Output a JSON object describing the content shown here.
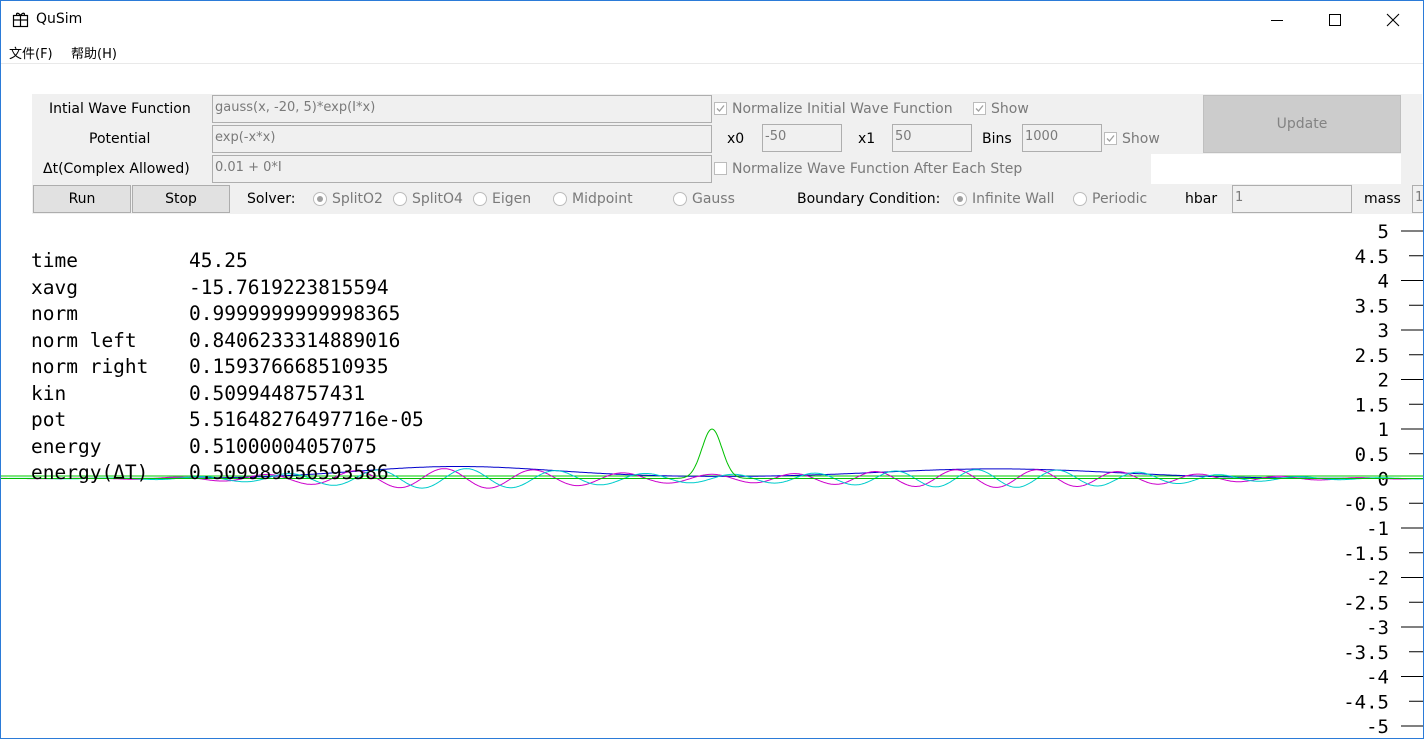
{
  "window": {
    "title": "QuSim"
  },
  "menu": [
    {
      "label": "文件(F)"
    },
    {
      "label": "帮助(H)"
    }
  ],
  "form": {
    "init_wave_label": "Intial Wave Function",
    "init_wave_value": "gauss(x, -20, 5)*exp(I*x)",
    "normalize_init_label": "Normalize Initial Wave Function",
    "show_label": "Show",
    "potential_label": "Potential",
    "potential_value": "exp(-x*x)",
    "x0_label": "x0",
    "x0_value": "-50",
    "x1_label": "x1",
    "x1_value": "50",
    "bins_label": "Bins",
    "bins_value": "1000",
    "show2_label": "Show",
    "dt_label": "Δt(Complex Allowed)",
    "dt_value": "0.01 + 0*I",
    "normalize_each_label": "Normalize Wave Function After Each Step",
    "update_label": "Update",
    "run_label": "Run",
    "stop_label": "Stop",
    "solver_label": "Solver:",
    "solvers": [
      "SplitO2",
      "SplitO4",
      "Eigen",
      "Midpoint",
      "Gauss"
    ],
    "selected_solver": "SplitO2",
    "boundary_label": "Boundary Condition:",
    "boundaries": [
      "Infinite Wall",
      "Periodic"
    ],
    "selected_boundary": "Infinite Wall",
    "hbar_label": "hbar",
    "hbar_value": "1",
    "mass_label": "mass",
    "mass_value": "1"
  },
  "stats": [
    {
      "name": "time",
      "value": "45.25"
    },
    {
      "name": "xavg",
      "value": "-15.7619223815594"
    },
    {
      "name": "norm",
      "value": "0.9999999999998365"
    },
    {
      "name": "norm left",
      "value": "0.8406233314889016"
    },
    {
      "name": "norm right",
      "value": "0.159376668510935"
    },
    {
      "name": "kin",
      "value": "0.5099448757431"
    },
    {
      "name": "pot",
      "value": "5.51648276497716e-05"
    },
    {
      "name": "energy",
      "value": "0.51000004057075"
    },
    {
      "name": "energy(ΔT)",
      "value": "0.509989056593586"
    }
  ],
  "chart_data": {
    "type": "line",
    "title": "",
    "xlabel": "",
    "ylabel": "",
    "xlim": [
      -50,
      50
    ],
    "ylim": [
      -5,
      5
    ],
    "yticks": [
      "5",
      "4.5",
      "4",
      "3.5",
      "3",
      "2.5",
      "2",
      "1.5",
      "1",
      "0.5",
      "0",
      "-0.5",
      "-1",
      "-1.5",
      "-2",
      "-2.5",
      "-3",
      "-3.5",
      "-4",
      "-4.5",
      "-5"
    ],
    "colors": {
      "potential": "#00c000",
      "abs": "#0000cc",
      "real": "#cc00cc",
      "imag": "#00cccc",
      "axis": "#00cc00"
    },
    "potential": {
      "center": 0,
      "width": 1,
      "height": 1
    },
    "packets": [
      {
        "center": -18,
        "amplitude": 0.2,
        "sigma": 10,
        "k": 1
      },
      {
        "center": 20,
        "amplitude": 0.18,
        "sigma": 12,
        "k": 1.1
      }
    ]
  }
}
